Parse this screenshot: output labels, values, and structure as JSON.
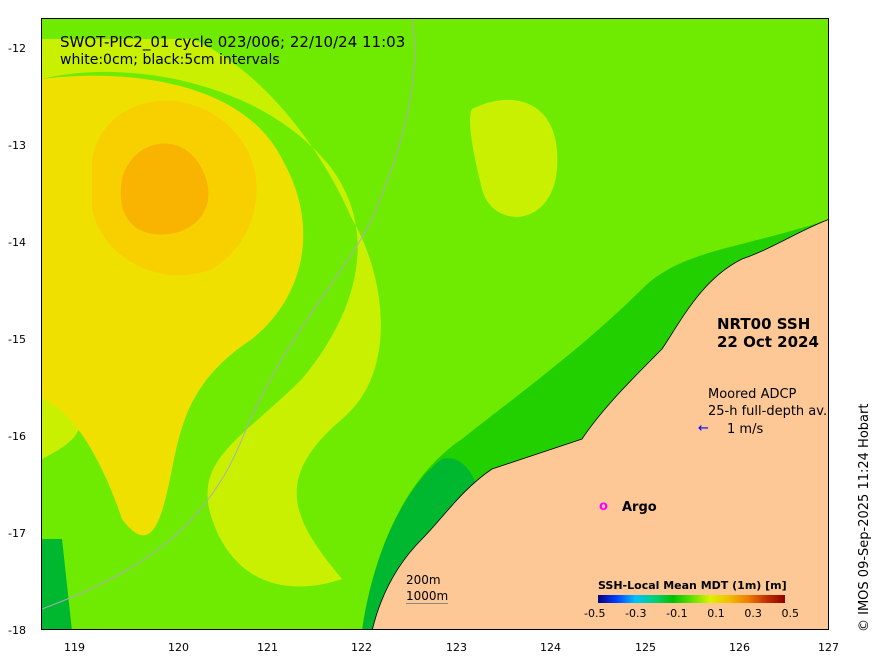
{
  "title": "SWOT-PIC2_01 cycle 023/006; 22/10/24 11:03",
  "subtitle": "white:0cm; black:5cm intervals",
  "product": "NRT00 SSH",
  "date": "22 Oct 2024",
  "adcp": {
    "line1": "Moored ADCP",
    "line2": "25-h full-depth av.",
    "scale": "1 m/s"
  },
  "argo": "Argo",
  "bathy": {
    "a": "200m",
    "b": "1000m"
  },
  "colorbar": {
    "title": "SSH-Local Mean MDT (1m) [m]",
    "ticks": [
      "-0.5",
      "-0.3",
      "-0.1",
      "0.1",
      "0.3",
      "0.5"
    ]
  },
  "credit": "© IMOS 09-Sep-2025 11:24 Hobart",
  "lon_ticks": [
    "119",
    "120",
    "121",
    "122",
    "123",
    "124",
    "125",
    "126",
    "127"
  ],
  "lat_ticks": [
    "-12",
    "-13",
    "-14",
    "-15",
    "-16",
    "-17",
    "-18"
  ],
  "colors": {
    "land": "#fdc896",
    "green1": "#6eeb00",
    "green2": "#22d000",
    "green3": "#00b830",
    "yellowgreen": "#c8f000",
    "yellow": "#f0e000",
    "orange": "#f8b400",
    "argo": "#ff00ff",
    "arrow": "#0000ff"
  }
}
